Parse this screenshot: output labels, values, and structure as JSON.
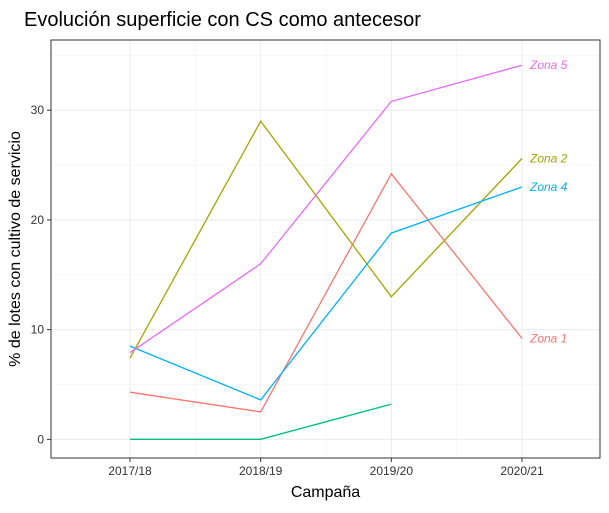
{
  "chart_data": {
    "type": "line",
    "title": "Evolución superficie con CS como antecesor",
    "xlabel": "Campaña",
    "ylabel": "% de lotes con cultivo de servicio",
    "categories": [
      "2017/18",
      "2018/19",
      "2019/20",
      "2020/21"
    ],
    "ylim": [
      -1.7,
      36.4
    ],
    "yticks": [
      0,
      10,
      20,
      30
    ],
    "grid": true,
    "legend": "direct labels at line ends",
    "series": [
      {
        "name": "Zona 1",
        "color": "#F8766D",
        "values": [
          4.3,
          2.5,
          24.2,
          9.2
        ]
      },
      {
        "name": "Zona 2",
        "color": "#A3A500",
        "values": [
          7.4,
          29.0,
          13.0,
          25.6
        ]
      },
      {
        "name": "",
        "color": "#00BF7D",
        "values": [
          0,
          0,
          3.2,
          null
        ]
      },
      {
        "name": "Zona 4",
        "color": "#00B0F6",
        "values": [
          8.5,
          3.6,
          18.8,
          23.0
        ]
      },
      {
        "name": "Zona 5",
        "color": "#E76BF3",
        "values": [
          7.9,
          16.0,
          30.8,
          34.1
        ]
      }
    ]
  }
}
